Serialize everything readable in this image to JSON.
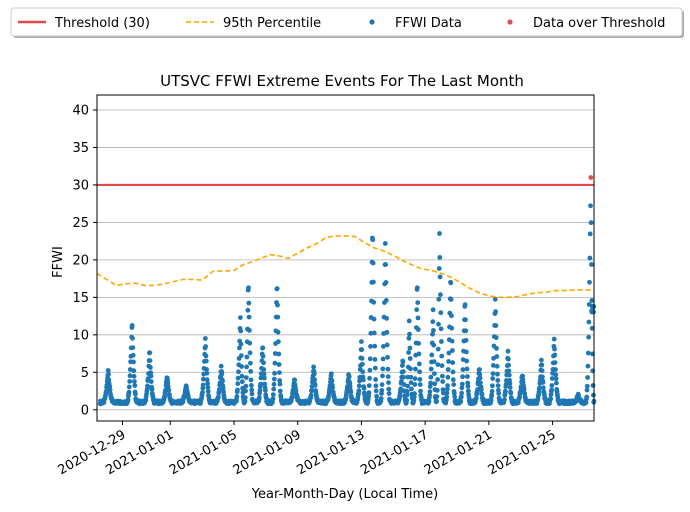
{
  "chart_data": {
    "type": "scatter",
    "title": "UTSVC FFWI Extreme Events For The Last Month",
    "xlabel": "Year-Month-Day (Local Time)",
    "ylabel": "FFWI",
    "xlim_days": [
      -1.6,
      29.6
    ],
    "ylim": [
      -1.5,
      42
    ],
    "grid": "horizontal",
    "legend_position": "top",
    "y_ticks": [
      0,
      5,
      10,
      15,
      20,
      25,
      30,
      35,
      40
    ],
    "x_ticks": [
      {
        "day": 0,
        "label": "2020-12-29"
      },
      {
        "day": 3,
        "label": "2021-01-01"
      },
      {
        "day": 7,
        "label": "2021-01-05"
      },
      {
        "day": 11,
        "label": "2021-01-09"
      },
      {
        "day": 15,
        "label": "2021-01-13"
      },
      {
        "day": 19,
        "label": "2021-01-17"
      },
      {
        "day": 23,
        "label": "2021-01-21"
      },
      {
        "day": 27,
        "label": "2021-01-25"
      }
    ],
    "threshold": {
      "name": "Threshold (30)",
      "value": 30,
      "color": "#e24a4a"
    },
    "percentile": {
      "name": "95th Percentile",
      "color": "#ffa500",
      "points": [
        [
          -1.6,
          18.2
        ],
        [
          -1.0,
          17.4
        ],
        [
          -0.4,
          16.6
        ],
        [
          0.2,
          16.8
        ],
        [
          0.8,
          16.9
        ],
        [
          1.4,
          16.6
        ],
        [
          2.0,
          16.6
        ],
        [
          2.6,
          16.8
        ],
        [
          3.2,
          17.1
        ],
        [
          3.8,
          17.4
        ],
        [
          4.4,
          17.4
        ],
        [
          5.0,
          17.3
        ],
        [
          5.7,
          18.5
        ],
        [
          6.4,
          18.5
        ],
        [
          7.0,
          18.6
        ],
        [
          7.6,
          19.4
        ],
        [
          8.2,
          19.8
        ],
        [
          8.8,
          20.3
        ],
        [
          9.3,
          20.7
        ],
        [
          9.9,
          20.5
        ],
        [
          10.4,
          20.2
        ],
        [
          11.0,
          20.9
        ],
        [
          11.6,
          21.6
        ],
        [
          12.2,
          22.2
        ],
        [
          12.8,
          23.0
        ],
        [
          13.4,
          23.2
        ],
        [
          14.0,
          23.2
        ],
        [
          14.6,
          23.1
        ],
        [
          15.2,
          22.3
        ],
        [
          15.8,
          21.6
        ],
        [
          16.4,
          21.2
        ],
        [
          17.0,
          20.6
        ],
        [
          17.6,
          19.9
        ],
        [
          18.2,
          19.3
        ],
        [
          18.8,
          18.8
        ],
        [
          19.4,
          18.6
        ],
        [
          20.0,
          18.2
        ],
        [
          20.6,
          17.7
        ],
        [
          21.2,
          17.0
        ],
        [
          21.8,
          16.2
        ],
        [
          22.4,
          15.6
        ],
        [
          23.0,
          15.2
        ],
        [
          23.6,
          15.0
        ],
        [
          24.2,
          15.0
        ],
        [
          24.8,
          15.1
        ],
        [
          25.4,
          15.4
        ],
        [
          26.0,
          15.6
        ],
        [
          26.6,
          15.7
        ],
        [
          27.2,
          15.9
        ],
        [
          27.8,
          15.9
        ],
        [
          28.4,
          16.0
        ],
        [
          29.0,
          16.0
        ],
        [
          29.6,
          16.0
        ]
      ]
    },
    "series_data": {
      "name": "FFWI Data",
      "color": "#1f77b4",
      "baseline": 1.0,
      "peaks": [
        [
          -0.9,
          5.3
        ],
        [
          0.6,
          11.8
        ],
        [
          1.7,
          7.9
        ],
        [
          2.8,
          4.6
        ],
        [
          4.0,
          3.3
        ],
        [
          5.2,
          9.4
        ],
        [
          6.2,
          5.9
        ],
        [
          7.4,
          12.2
        ],
        [
          7.9,
          17.3
        ],
        [
          8.8,
          8.8
        ],
        [
          9.7,
          17.3
        ],
        [
          10.8,
          4.2
        ],
        [
          12.0,
          5.8
        ],
        [
          13.1,
          4.9
        ],
        [
          14.2,
          5.0
        ],
        [
          15.0,
          9.0
        ],
        [
          15.7,
          24.3
        ],
        [
          16.5,
          22.2
        ],
        [
          17.6,
          7.0
        ],
        [
          18.0,
          11.7
        ],
        [
          18.5,
          17.5
        ],
        [
          19.5,
          13.2
        ],
        [
          19.9,
          23.4
        ],
        [
          20.6,
          18.0
        ],
        [
          21.5,
          14.9
        ],
        [
          22.4,
          5.7
        ],
        [
          23.4,
          14.8
        ],
        [
          24.2,
          7.7
        ],
        [
          25.1,
          4.9
        ],
        [
          26.3,
          6.6
        ],
        [
          27.1,
          9.4
        ],
        [
          28.6,
          2.0
        ],
        [
          29.4,
          31.1
        ]
      ]
    },
    "over_threshold": {
      "name": "Data over Threshold",
      "color": "#d9534f"
    },
    "legend": [
      "Threshold (30)",
      "95th Percentile",
      "FFWI Data",
      "Data over Threshold"
    ]
  }
}
